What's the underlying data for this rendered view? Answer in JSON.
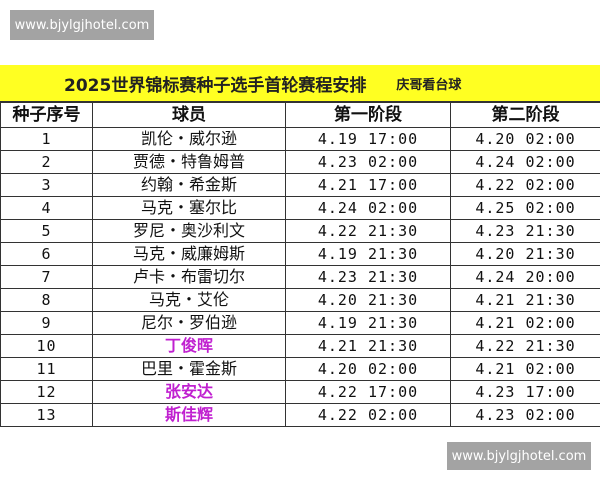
{
  "watermarks": {
    "top": "www.bjylgjhotel.com",
    "bottom": "www.bjylgjhotel.com"
  },
  "title": "2025世界锦标赛种子选手首轮赛程安排",
  "author": "庆哥看台球",
  "headers": [
    "种子序号",
    "球员",
    "第一阶段",
    "第二阶段"
  ],
  "colors": {
    "title_bg": "#ffff22",
    "highlight_name": "#c020d0"
  },
  "rows": [
    {
      "seed": "1",
      "player": "凯伦・威尔逊",
      "stage1": "4.19 17:00",
      "stage2": "4.20 02:00"
    },
    {
      "seed": "2",
      "player": "贾德・特鲁姆普",
      "stage1": "4.23 02:00",
      "stage2": "4.24 02:00"
    },
    {
      "seed": "3",
      "player": "约翰・希金斯",
      "stage1": "4.21 17:00",
      "stage2": "4.22 02:00"
    },
    {
      "seed": "4",
      "player": "马克・塞尔比",
      "stage1": "4.24 02:00",
      "stage2": "4.25 02:00"
    },
    {
      "seed": "5",
      "player": "罗尼・奥沙利文",
      "stage1": "4.22 21:30",
      "stage2": "4.23 21:30"
    },
    {
      "seed": "6",
      "player": "马克・威廉姆斯",
      "stage1": "4.19 21:30",
      "stage2": "4.20 21:30"
    },
    {
      "seed": "7",
      "player": "卢卡・布雷切尔",
      "stage1": "4.23 21:30",
      "stage2": "4.24 20:00"
    },
    {
      "seed": "8",
      "player": "马克・艾伦",
      "stage1": "4.20 21:30",
      "stage2": "4.21 21:30"
    },
    {
      "seed": "9",
      "player": "尼尔・罗伯逊",
      "stage1": "4.19 21:30",
      "stage2": "4.21 02:00"
    },
    {
      "seed": "10",
      "player": "丁俊晖",
      "stage1": "4.21 21:30",
      "stage2": "4.22 21:30",
      "highlight": true
    },
    {
      "seed": "11",
      "player": "巴里・霍金斯",
      "stage1": "4.20 02:00",
      "stage2": "4.21 02:00"
    },
    {
      "seed": "12",
      "player": "张安达",
      "stage1": "4.22 17:00",
      "stage2": "4.23 17:00",
      "highlight": true
    },
    {
      "seed": "13",
      "player": "斯佳辉",
      "stage1": "4.22 02:00",
      "stage2": "4.23 02:00",
      "highlight": true
    }
  ]
}
